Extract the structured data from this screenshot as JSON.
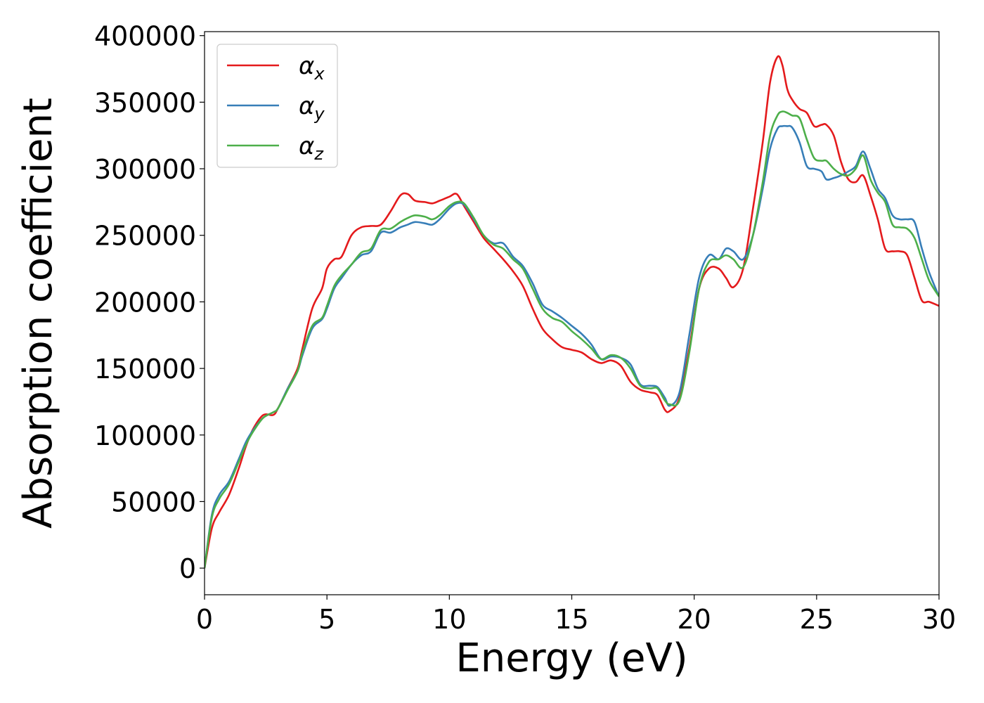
{
  "chart_data": {
    "type": "line",
    "title": "",
    "xlabel": "Energy (eV)",
    "ylabel": "Absorption coefficient",
    "xlim": [
      0,
      30
    ],
    "ylim": [
      -20000,
      403000
    ],
    "xticks": [
      0,
      5,
      10,
      15,
      20,
      25,
      30
    ],
    "yticks": [
      0,
      50000,
      100000,
      150000,
      200000,
      250000,
      300000,
      350000,
      400000
    ],
    "grid": false,
    "legend_position": "top-left",
    "series": [
      {
        "name": "α",
        "subscript": "x",
        "color": "#e41a1c",
        "x": [
          0,
          0.3,
          0.6,
          1.0,
          1.4,
          1.7,
          2.0,
          2.4,
          2.8,
          3.0,
          3.4,
          3.8,
          4.0,
          4.4,
          4.8,
          5.0,
          5.3,
          5.6,
          6.0,
          6.4,
          6.8,
          7.2,
          7.6,
          8.0,
          8.3,
          8.6,
          9.0,
          9.3,
          9.6,
          10.0,
          10.3,
          10.6,
          11.0,
          11.4,
          11.8,
          12.2,
          12.6,
          13.0,
          13.4,
          13.8,
          14.2,
          14.6,
          15.0,
          15.4,
          15.8,
          16.2,
          16.6,
          17.0,
          17.4,
          17.8,
          18.2,
          18.5,
          18.8,
          19.0,
          19.4,
          19.8,
          20.2,
          20.6,
          21.0,
          21.3,
          21.6,
          22.0,
          22.4,
          22.8,
          23.1,
          23.4,
          23.6,
          23.8,
          24.0,
          24.3,
          24.6,
          24.9,
          25.2,
          25.4,
          25.7,
          26.0,
          26.3,
          26.6,
          26.9,
          27.2,
          27.5,
          27.8,
          28.1,
          28.4,
          28.7,
          29.0,
          29.3,
          29.6,
          30.0
        ],
        "values": [
          0,
          30000,
          42000,
          55000,
          75000,
          92000,
          105000,
          115000,
          115000,
          120000,
          135000,
          150000,
          165000,
          195000,
          210000,
          225000,
          232000,
          234000,
          250000,
          256000,
          257000,
          258000,
          268000,
          280000,
          281000,
          276000,
          275000,
          274000,
          276000,
          279000,
          281000,
          272000,
          260000,
          248000,
          240000,
          232000,
          223000,
          212000,
          195000,
          180000,
          172000,
          166000,
          164000,
          162000,
          157000,
          154000,
          156000,
          152000,
          140000,
          134000,
          132000,
          130000,
          119000,
          118000,
          128000,
          165000,
          210000,
          225000,
          225000,
          218000,
          211000,
          225000,
          270000,
          320000,
          365000,
          384000,
          378000,
          360000,
          352000,
          345000,
          342000,
          332000,
          333000,
          333000,
          325000,
          305000,
          292000,
          290000,
          295000,
          280000,
          262000,
          240000,
          238000,
          238000,
          235000,
          218000,
          201000,
          200000,
          197000
        ]
      },
      {
        "name": "α",
        "subscript": "y",
        "color": "#377eb8",
        "x": [
          0,
          0.3,
          0.6,
          1.0,
          1.4,
          1.7,
          2.0,
          2.4,
          2.8,
          3.0,
          3.4,
          3.8,
          4.0,
          4.4,
          4.8,
          5.0,
          5.3,
          5.6,
          6.0,
          6.4,
          6.8,
          7.2,
          7.6,
          8.0,
          8.3,
          8.6,
          9.0,
          9.3,
          9.6,
          10.0,
          10.3,
          10.6,
          11.0,
          11.4,
          11.8,
          12.2,
          12.6,
          13.0,
          13.4,
          13.8,
          14.2,
          14.6,
          15.0,
          15.4,
          15.8,
          16.2,
          16.6,
          17.0,
          17.4,
          17.8,
          18.2,
          18.5,
          18.8,
          19.0,
          19.4,
          19.8,
          20.2,
          20.6,
          21.0,
          21.3,
          21.6,
          22.0,
          22.4,
          22.8,
          23.1,
          23.4,
          23.6,
          23.8,
          24.0,
          24.3,
          24.6,
          24.9,
          25.2,
          25.4,
          25.7,
          26.0,
          26.3,
          26.6,
          26.9,
          27.2,
          27.5,
          27.8,
          28.1,
          28.4,
          28.7,
          29.0,
          29.3,
          29.6,
          30.0
        ],
        "values": [
          0,
          40000,
          55000,
          65000,
          82000,
          95000,
          104000,
          113000,
          117000,
          120000,
          135000,
          148000,
          160000,
          180000,
          187000,
          195000,
          210000,
          218000,
          228000,
          235000,
          238000,
          252000,
          252000,
          256000,
          258000,
          260000,
          259000,
          258000,
          262000,
          270000,
          274000,
          273000,
          262000,
          250000,
          244000,
          244000,
          234000,
          227000,
          214000,
          198000,
          193000,
          188000,
          182000,
          176000,
          168000,
          157000,
          159000,
          158000,
          153000,
          138000,
          137000,
          136000,
          128000,
          122000,
          132000,
          175000,
          218000,
          235000,
          232000,
          240000,
          238000,
          232000,
          250000,
          285000,
          315000,
          330000,
          332000,
          332000,
          331000,
          320000,
          302000,
          300000,
          298000,
          292000,
          293000,
          295000,
          298000,
          302000,
          313000,
          300000,
          285000,
          278000,
          265000,
          262000,
          262000,
          260000,
          240000,
          222000,
          204000
        ]
      },
      {
        "name": "α",
        "subscript": "z",
        "color": "#4daf4a",
        "x": [
          0,
          0.3,
          0.6,
          1.0,
          1.4,
          1.7,
          2.0,
          2.4,
          2.8,
          3.0,
          3.4,
          3.8,
          4.0,
          4.4,
          4.8,
          5.0,
          5.3,
          5.6,
          6.0,
          6.4,
          6.8,
          7.2,
          7.6,
          8.0,
          8.3,
          8.6,
          9.0,
          9.3,
          9.6,
          10.0,
          10.3,
          10.6,
          11.0,
          11.4,
          11.8,
          12.2,
          12.6,
          13.0,
          13.4,
          13.8,
          14.2,
          14.6,
          15.0,
          15.4,
          15.8,
          16.2,
          16.6,
          17.0,
          17.4,
          17.8,
          18.2,
          18.5,
          18.8,
          19.0,
          19.4,
          19.8,
          20.2,
          20.6,
          21.0,
          21.3,
          21.6,
          22.0,
          22.4,
          22.8,
          23.1,
          23.4,
          23.6,
          23.8,
          24.0,
          24.3,
          24.6,
          24.9,
          25.2,
          25.4,
          25.7,
          26.0,
          26.3,
          26.6,
          26.9,
          27.2,
          27.5,
          27.8,
          28.1,
          28.4,
          28.7,
          29.0,
          29.3,
          29.6,
          30.0
        ],
        "values": [
          0,
          38000,
          52000,
          63000,
          80000,
          93000,
          103000,
          113000,
          117000,
          120000,
          134000,
          148000,
          162000,
          182000,
          188000,
          197000,
          212000,
          220000,
          228000,
          237000,
          240000,
          254000,
          255000,
          260000,
          263000,
          265000,
          264000,
          262000,
          265000,
          272000,
          275000,
          274000,
          263000,
          250000,
          243000,
          240000,
          232000,
          225000,
          210000,
          195000,
          188000,
          185000,
          178000,
          172000,
          165000,
          157000,
          160000,
          158000,
          150000,
          137000,
          135000,
          135000,
          126000,
          123000,
          126000,
          162000,
          210000,
          230000,
          232000,
          235000,
          232000,
          226000,
          250000,
          290000,
          325000,
          340000,
          343000,
          342000,
          340000,
          338000,
          322000,
          308000,
          306000,
          306000,
          300000,
          296000,
          295000,
          300000,
          310000,
          292000,
          282000,
          275000,
          258000,
          256000,
          255000,
          248000,
          232000,
          216000,
          204000
        ]
      }
    ]
  }
}
